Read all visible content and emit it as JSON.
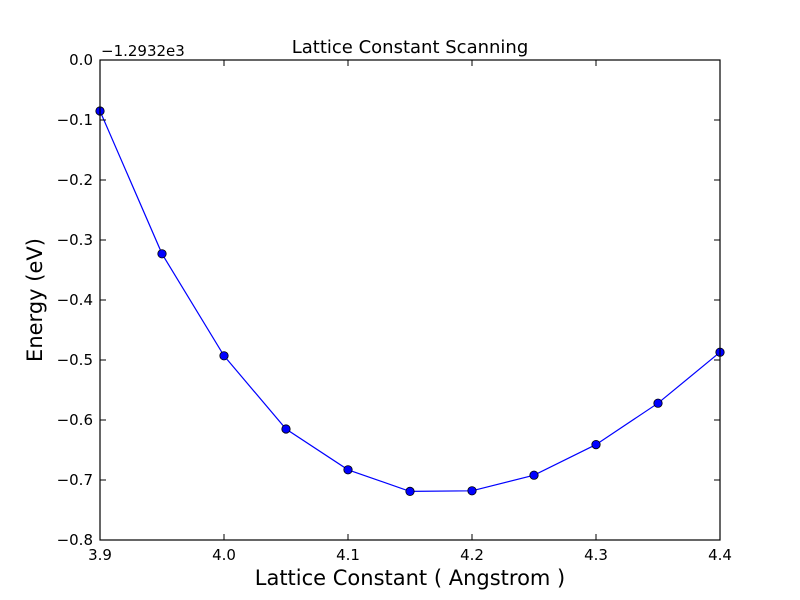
{
  "chart_data": {
    "type": "line",
    "title": "Lattice Constant Scanning",
    "xlabel": "Lattice Constant ( Angstrom )",
    "ylabel": "Energy (eV)",
    "y_offset_label": "−1.2932e3",
    "xlim": [
      3.9,
      4.4
    ],
    "ylim": [
      -0.8,
      0.0
    ],
    "x_ticks": [
      3.9,
      4.0,
      4.1,
      4.2,
      4.3,
      4.4
    ],
    "x_tick_labels": [
      "3.9",
      "4.0",
      "4.1",
      "4.2",
      "4.3",
      "4.4"
    ],
    "y_ticks": [
      0.0,
      -0.1,
      -0.2,
      -0.3,
      -0.4,
      -0.5,
      -0.6,
      -0.7,
      -0.8
    ],
    "y_tick_labels": [
      "0.0",
      "−0.1",
      "−0.2",
      "−0.3",
      "−0.4",
      "−0.5",
      "−0.6",
      "−0.7",
      "−0.8"
    ],
    "grid": false,
    "series": [
      {
        "color": "#0000ff",
        "marker": "circle",
        "x": [
          3.9,
          3.95,
          4.0,
          4.05,
          4.1,
          4.15,
          4.2,
          4.25,
          4.3,
          4.35,
          4.4
        ],
        "y": [
          -0.085,
          -0.323,
          -0.493,
          -0.615,
          -0.683,
          -0.719,
          -0.718,
          -0.692,
          -0.641,
          -0.572,
          -0.487
        ]
      }
    ]
  }
}
